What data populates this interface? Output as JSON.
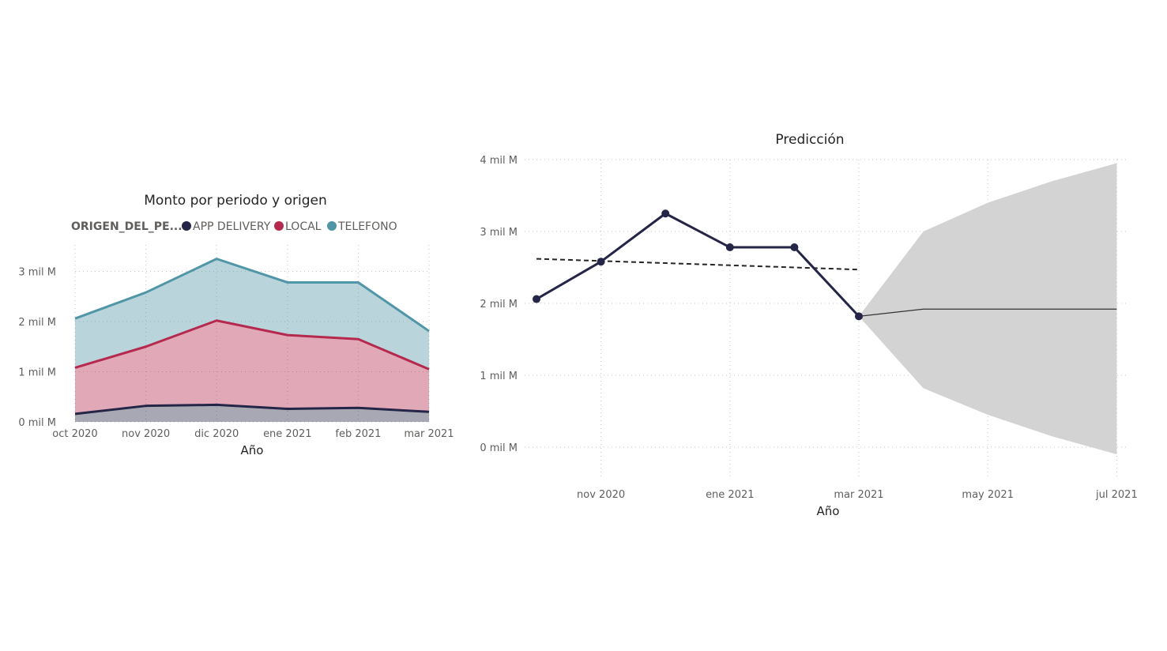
{
  "colors": {
    "app_delivery": "#252547",
    "local": "#b5294e",
    "telefono": "#5096a6",
    "forecast_band": "#d3d3d3",
    "forecast_line": "#333333",
    "trend_line": "#252423"
  },
  "chart_data": [
    {
      "type": "area",
      "title": "Monto por periodo y origen",
      "xlabel": "Año",
      "ylabel": "",
      "stacked": true,
      "legend": {
        "title": "ORIGEN_DEL_PE...",
        "position": "top-left"
      },
      "categories": [
        "oct 2020",
        "nov 2020",
        "dic 2020",
        "ene 2021",
        "feb 2021",
        "mar 2021"
      ],
      "series": [
        {
          "name": "APP DELIVERY",
          "color_key": "app_delivery",
          "values": [
            0.16,
            0.32,
            0.34,
            0.26,
            0.28,
            0.2
          ]
        },
        {
          "name": "LOCAL",
          "color_key": "local",
          "values": [
            0.92,
            1.18,
            1.68,
            1.47,
            1.37,
            0.85
          ]
        },
        {
          "name": "TELEFONO",
          "color_key": "telefono",
          "values": [
            0.98,
            1.08,
            1.23,
            1.05,
            1.13,
            0.76
          ]
        }
      ],
      "yticks": [
        "0 mil M",
        "1 mil M",
        "2 mil M",
        "3 mil M"
      ],
      "ylim": [
        0,
        3.35
      ],
      "grid": true
    },
    {
      "type": "line",
      "title": "Predicción",
      "xlabel": "Año",
      "ylabel": "",
      "x_dates": [
        "2020-10-01",
        "2020-11-01",
        "2020-12-01",
        "2021-01-01",
        "2021-02-01",
        "2021-03-01"
      ],
      "values": [
        2.06,
        2.58,
        3.25,
        2.78,
        2.78,
        1.82
      ],
      "trend": {
        "start": [
          "2020-10-01",
          2.62
        ],
        "end": [
          "2021-03-01",
          2.47
        ]
      },
      "forecast": {
        "x_dates": [
          "2021-03-01",
          "2021-04-01",
          "2021-05-01",
          "2021-06-01",
          "2021-07-01"
        ],
        "values": [
          1.82,
          1.92,
          1.92,
          1.92,
          1.92
        ],
        "upper": [
          1.82,
          3.0,
          3.4,
          3.7,
          3.95
        ],
        "lower": [
          1.82,
          0.82,
          0.45,
          0.15,
          -0.1
        ]
      },
      "xticks": [
        {
          "date": "2020-11-01",
          "label": "nov 2020"
        },
        {
          "date": "2021-01-01",
          "label": "ene 2021"
        },
        {
          "date": "2021-03-01",
          "label": "mar 2021"
        },
        {
          "date": "2021-05-01",
          "label": "may 2021"
        },
        {
          "date": "2021-07-01",
          "label": "jul 2021"
        }
      ],
      "yticks": [
        "0 mil M",
        "1 mil M",
        "2 mil M",
        "3 mil M",
        "4 mil M"
      ],
      "ylim": [
        0,
        4
      ],
      "grid": true
    }
  ]
}
